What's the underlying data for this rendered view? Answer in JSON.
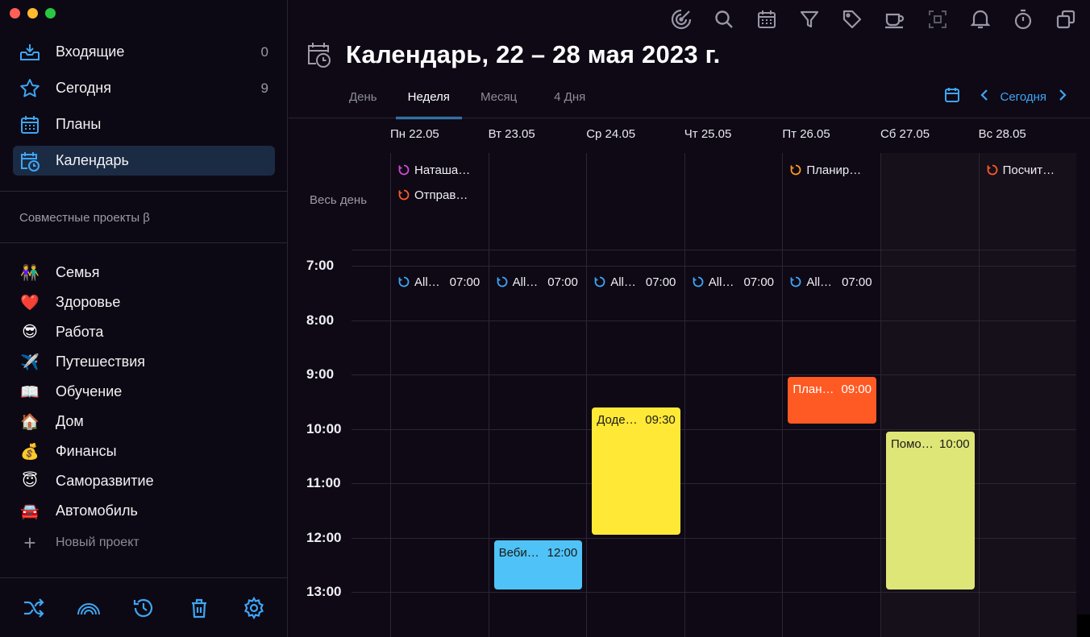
{
  "sidebar": {
    "nav": [
      {
        "label": "Входящие",
        "count": "0",
        "icon": "inbox-icon"
      },
      {
        "label": "Сегодня",
        "count": "9",
        "icon": "star-icon"
      },
      {
        "label": "Планы",
        "count": "",
        "icon": "calendar-grid-icon"
      },
      {
        "label": "Календарь",
        "count": "",
        "icon": "calendar-clock-icon"
      }
    ],
    "shared_label": "Совместные проекты β",
    "projects": [
      {
        "emoji": "👫",
        "label": "Семья"
      },
      {
        "emoji": "❤️",
        "label": "Здоровье"
      },
      {
        "emoji": "😎",
        "label": "Работа"
      },
      {
        "emoji": "✈️",
        "label": "Путешествия"
      },
      {
        "emoji": "📖",
        "label": "Обучение"
      },
      {
        "emoji": "🏠",
        "label": "Дом"
      },
      {
        "emoji": "💰",
        "label": "Финансы"
      },
      {
        "emoji": "😇",
        "label": "Саморазвитие"
      },
      {
        "emoji": "🚘",
        "label": "Автомобиль"
      }
    ],
    "new_project": "Новый проект",
    "bottom_icons": [
      "shuffle-icon",
      "rainbow-icon",
      "history-icon",
      "trash-icon",
      "settings-icon"
    ]
  },
  "toolbar_icons": [
    "focus-icon",
    "search-icon",
    "calendar-icon",
    "filter-icon",
    "tag-icon",
    "coffee-icon",
    "screenshot-icon",
    "bell-icon",
    "timer-icon",
    "windows-icon"
  ],
  "main": {
    "title": "Календарь, 22 – 28 мая 2023 г.",
    "tabs": [
      "День",
      "Неделя",
      "Месяц",
      "4 Дня"
    ],
    "active_tab": "Неделя",
    "today_label": "Сегодня",
    "all_day_label": "Весь день",
    "days": [
      "Пн 22.05",
      "Вт 23.05",
      "Ср 24.05",
      "Чт 25.05",
      "Пт 26.05",
      "Сб 27.05",
      "Вс 28.05"
    ],
    "hours": [
      "7:00",
      "8:00",
      "9:00",
      "10:00",
      "11:00",
      "12:00",
      "13:00"
    ],
    "all_day_events": [
      {
        "day": 0,
        "row": 0,
        "label": "Наташа…",
        "color": "#d04cd6"
      },
      {
        "day": 0,
        "row": 1,
        "label": "Отправ…",
        "color": "#ff5a2a"
      },
      {
        "day": 4,
        "row": 0,
        "label": "Планир…",
        "color": "#ff9a1e"
      },
      {
        "day": 6,
        "row": 0,
        "label": "Посчит…",
        "color": "#ff5a2a"
      }
    ],
    "recurring_events": [
      {
        "day": 0,
        "label": "All…",
        "time": "07:00"
      },
      {
        "day": 1,
        "label": "All…",
        "time": "07:00"
      },
      {
        "day": 2,
        "label": "All…",
        "time": "07:00"
      },
      {
        "day": 3,
        "label": "All…",
        "time": "07:00"
      },
      {
        "day": 4,
        "label": "All…",
        "time": "07:00"
      }
    ],
    "blocks": [
      {
        "day": 2,
        "label": "Доде…",
        "time": "09:30",
        "start": 9.6,
        "end": 11.95,
        "bg": "#ffe936",
        "fg": "#1a1a1a"
      },
      {
        "day": 4,
        "label": "План…",
        "time": "09:00",
        "start": 9.05,
        "end": 9.9,
        "bg": "#ff5a23",
        "fg": "#ffffff"
      },
      {
        "day": 5,
        "label": "Помо…",
        "time": "10:00",
        "start": 10.05,
        "end": 12.95,
        "bg": "#dfe678",
        "fg": "#1a1a1a"
      },
      {
        "day": 1,
        "label": "Веби…",
        "time": "12:00",
        "start": 12.05,
        "end": 12.95,
        "bg": "#4fc3f7",
        "fg": "#1a1a1a"
      }
    ],
    "accent": "#3ea6f4"
  }
}
